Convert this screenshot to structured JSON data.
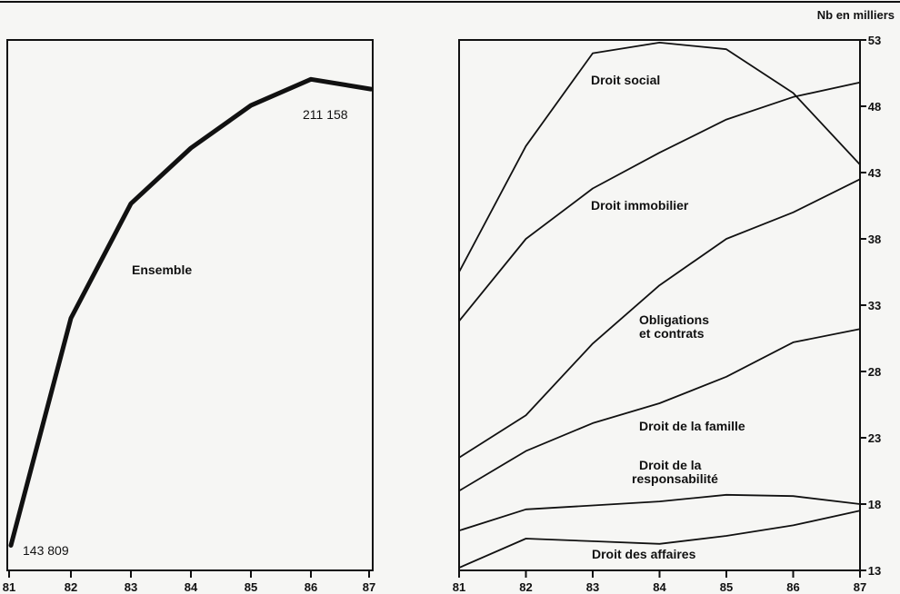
{
  "chart_data": [
    {
      "type": "line",
      "title": "",
      "categories": [
        "81",
        "82",
        "83",
        "84",
        "85",
        "86",
        "87"
      ],
      "series": [
        {
          "name": "Ensemble",
          "values": [
            143809,
            178500,
            196000,
            204500,
            211000,
            215000,
            213500
          ]
        }
      ],
      "annotations": [
        {
          "text": "143 809",
          "x": "81"
        },
        {
          "text": "211 158",
          "x": "86"
        }
      ],
      "ylim": [
        140000,
        221000
      ],
      "grid": false
    },
    {
      "type": "line",
      "title": "",
      "unit_label": "Nb en milliers",
      "categories": [
        "81",
        "82",
        "83",
        "84",
        "85",
        "86",
        "87"
      ],
      "yticks": [
        "53",
        "48",
        "43",
        "38",
        "33",
        "28",
        "23",
        "18",
        "13"
      ],
      "ylim": [
        13,
        53
      ],
      "y_axis_position": "right",
      "grid": false,
      "series": [
        {
          "name": "Droit social",
          "values": [
            35.5,
            45.0,
            52.0,
            52.8,
            52.3,
            49.0,
            43.6
          ]
        },
        {
          "name": "Droit immobilier",
          "values": [
            31.8,
            38.0,
            41.8,
            44.5,
            47.0,
            48.7,
            49.8
          ]
        },
        {
          "name": "Obligations et contrats",
          "values": [
            21.5,
            24.7,
            30.1,
            34.5,
            38.0,
            40.0,
            42.5
          ]
        },
        {
          "name": "Droit de la famille",
          "values": [
            19.0,
            22.0,
            24.1,
            25.6,
            27.6,
            30.2,
            31.2
          ]
        },
        {
          "name": "Droit de la responsabilité",
          "values": [
            16.0,
            17.6,
            17.9,
            18.2,
            18.7,
            18.6,
            18.0
          ]
        },
        {
          "name": "Droit des affaires",
          "values": [
            13.2,
            15.4,
            15.2,
            15.0,
            15.6,
            16.4,
            17.5
          ]
        }
      ]
    }
  ],
  "texts": {
    "left_ensemble_label": "Ensemble",
    "left_start_value": "143 809",
    "left_peak_value": "211 158",
    "right_unit": "Nb en milliers",
    "obligations_line1": "Obligations",
    "obligations_line2": "et contrats",
    "responsabilite_line1": "Droit de la",
    "responsabilite_line2": "responsabilité"
  }
}
